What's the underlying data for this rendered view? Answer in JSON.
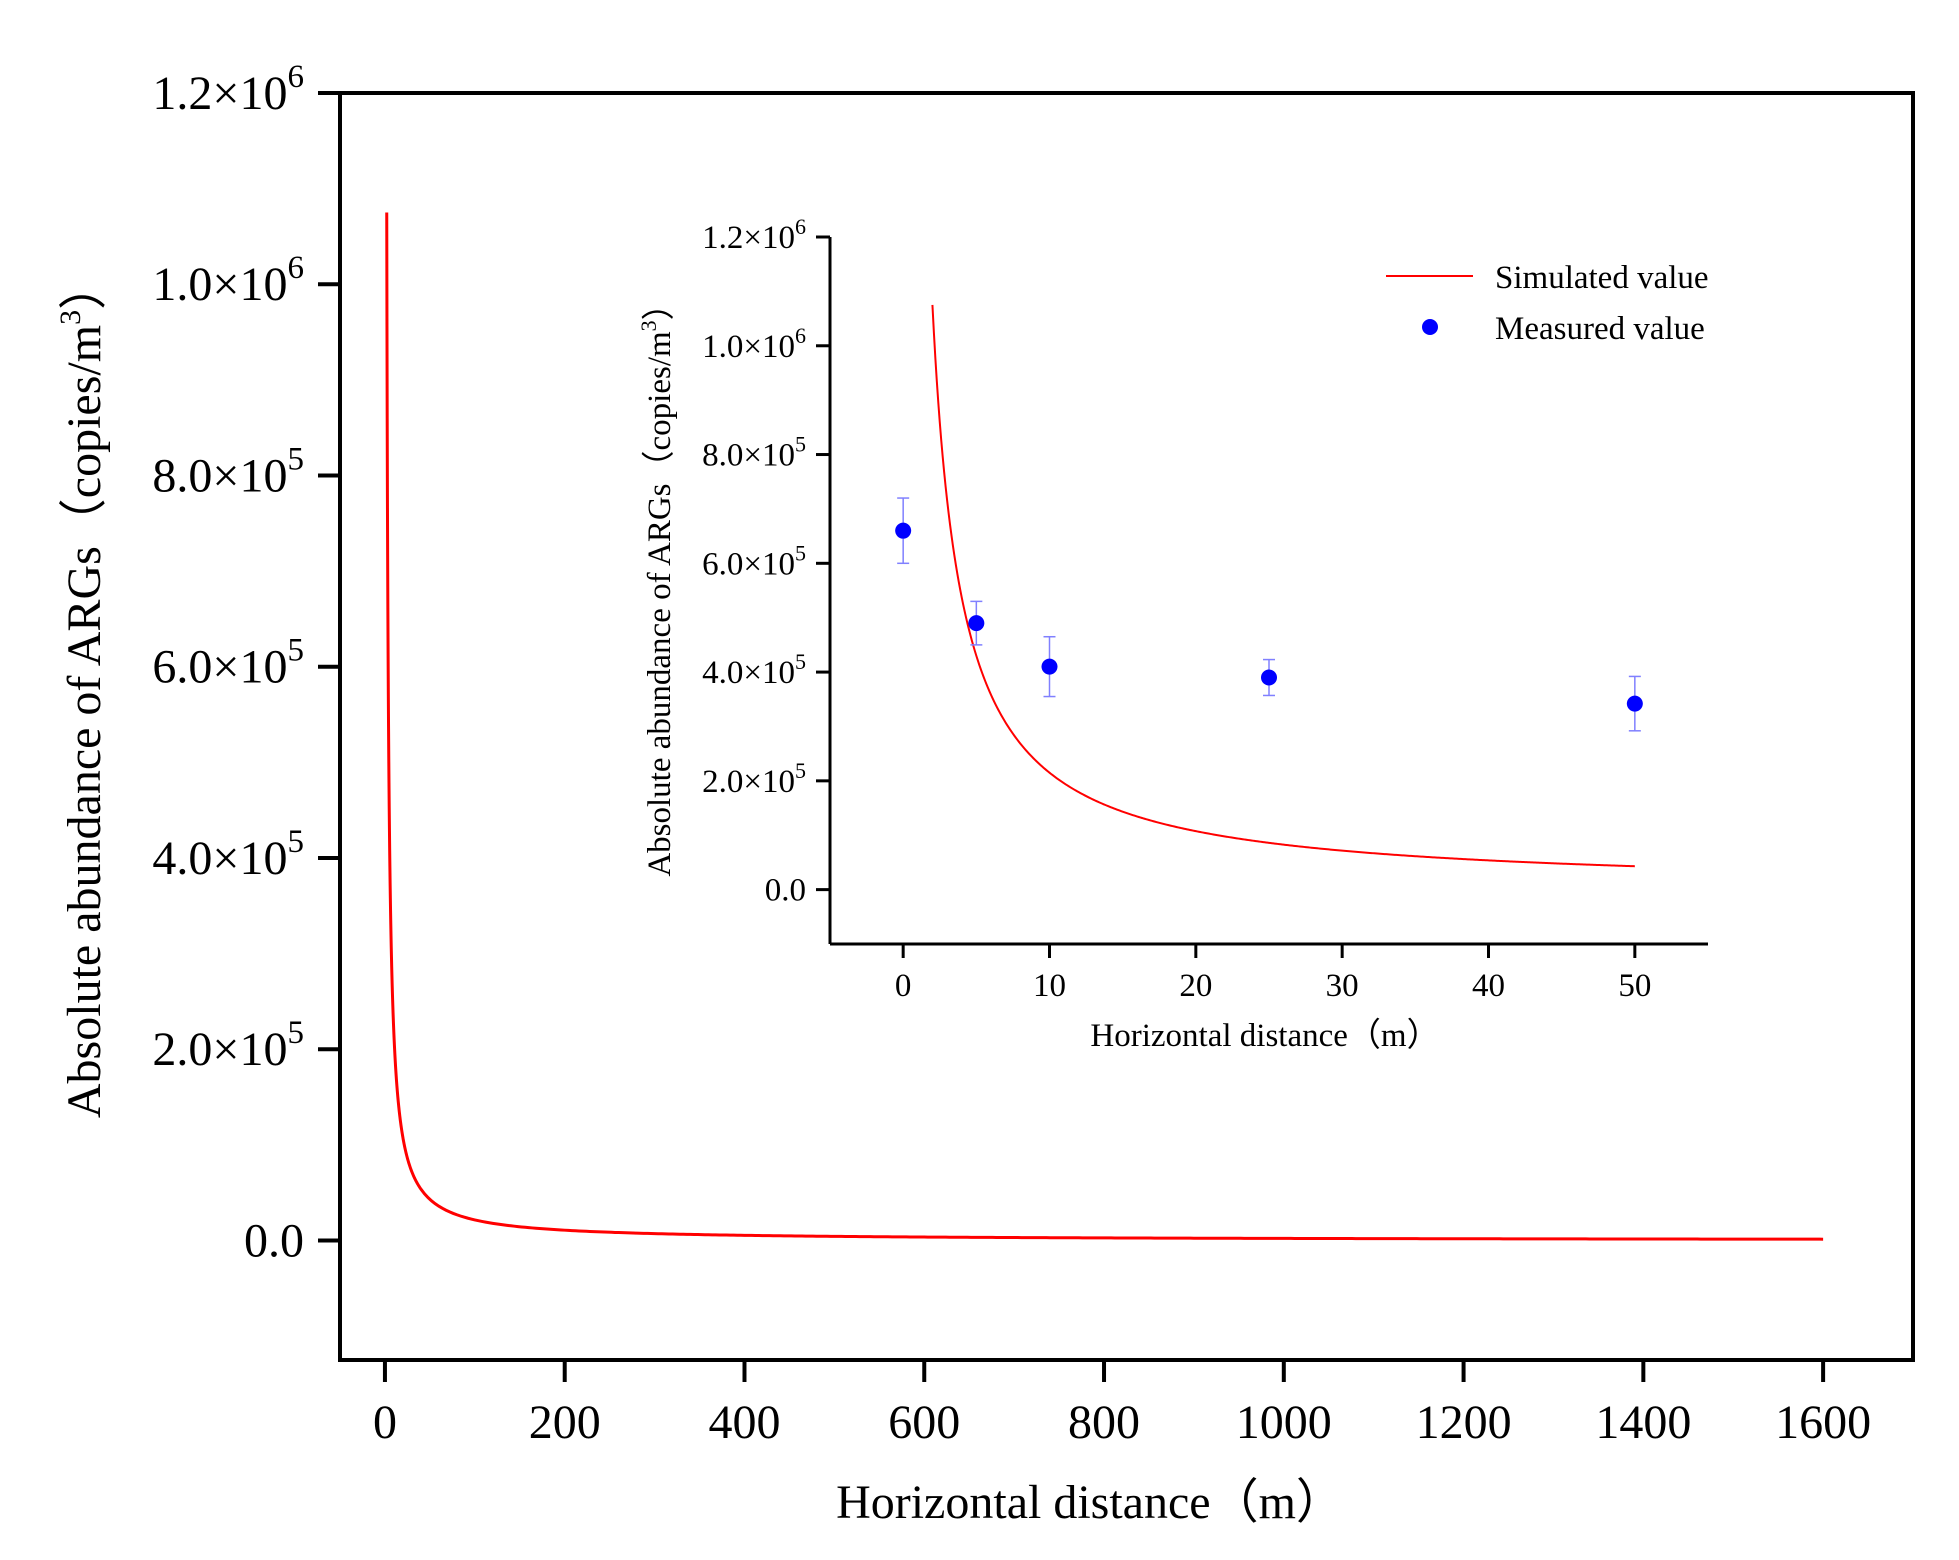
{
  "chart_data": [
    {
      "id": "main",
      "type": "line",
      "xlabel": "Horizontal distance（m）",
      "ylabel_prefix": "Absolute abundance of ARGs（copies/m",
      "ylabel_sup": "3",
      "ylabel_suffix": "）",
      "xlim": [
        -50,
        1700
      ],
      "ylim": [
        -125000,
        1200000
      ],
      "xticks": [
        {
          "value": 0,
          "label": "0"
        },
        {
          "value": 200,
          "label": "200"
        },
        {
          "value": 400,
          "label": "400"
        },
        {
          "value": 600,
          "label": "600"
        },
        {
          "value": 800,
          "label": "800"
        },
        {
          "value": 1000,
          "label": "1000"
        },
        {
          "value": 1200,
          "label": "1200"
        },
        {
          "value": 1400,
          "label": "1400"
        },
        {
          "value": 1600,
          "label": "1600"
        }
      ],
      "yticks": [
        {
          "value": 0,
          "mantissa": "0.0",
          "exp": ""
        },
        {
          "value": 200000,
          "mantissa": "2.0×10",
          "exp": "5"
        },
        {
          "value": 400000,
          "mantissa": "4.0×10",
          "exp": "5"
        },
        {
          "value": 600000,
          "mantissa": "6.0×10",
          "exp": "5"
        },
        {
          "value": 800000,
          "mantissa": "8.0×10",
          "exp": "5"
        },
        {
          "value": 1000000,
          "mantissa": "1.0×10",
          "exp": "6"
        },
        {
          "value": 1200000,
          "mantissa": "1.2×10",
          "exp": "6"
        }
      ],
      "series": [
        {
          "name": "Simulated value",
          "color": "#ff0000",
          "model": {
            "form": "a/x",
            "a": 2150000
          },
          "x_range": [
            2,
            1600
          ]
        }
      ]
    },
    {
      "id": "inset",
      "type": "line",
      "xlabel": "Horizontal distance（m）",
      "ylabel_prefix": "Absolute abundance of ARGs（copies/m",
      "ylabel_sup": "3",
      "ylabel_suffix": "）",
      "xlim": [
        -5,
        55
      ],
      "ylim": [
        -100000,
        1200000
      ],
      "xticks": [
        {
          "value": 0,
          "label": "0"
        },
        {
          "value": 10,
          "label": "10"
        },
        {
          "value": 20,
          "label": "20"
        },
        {
          "value": 30,
          "label": "30"
        },
        {
          "value": 40,
          "label": "40"
        },
        {
          "value": 50,
          "label": "50"
        }
      ],
      "yticks": [
        {
          "value": 0,
          "mantissa": "0.0",
          "exp": ""
        },
        {
          "value": 200000,
          "mantissa": "2.0×10",
          "exp": "5"
        },
        {
          "value": 400000,
          "mantissa": "4.0×10",
          "exp": "5"
        },
        {
          "value": 600000,
          "mantissa": "6.0×10",
          "exp": "5"
        },
        {
          "value": 800000,
          "mantissa": "8.0×10",
          "exp": "5"
        },
        {
          "value": 1000000,
          "mantissa": "1.0×10",
          "exp": "6"
        },
        {
          "value": 1200000,
          "mantissa": "1.2×10",
          "exp": "6"
        }
      ],
      "legend": {
        "position": "top-right"
      },
      "series": [
        {
          "name": "Simulated value",
          "type": "line",
          "color": "#ff0000",
          "model": {
            "form": "a/x",
            "a": 2150000
          },
          "x_range": [
            2,
            50
          ]
        },
        {
          "name": "Measured value",
          "type": "scatter",
          "color": "#0000ff",
          "errorbar_color": "#8080ff",
          "points": [
            {
              "x": 0,
              "y": 660000,
              "err": 60000
            },
            {
              "x": 5,
              "y": 490000,
              "err": 40000
            },
            {
              "x": 10,
              "y": 410000,
              "err": 55000
            },
            {
              "x": 25,
              "y": 390000,
              "err": 33000
            },
            {
              "x": 50,
              "y": 342000,
              "err": 50000
            }
          ]
        }
      ]
    }
  ]
}
